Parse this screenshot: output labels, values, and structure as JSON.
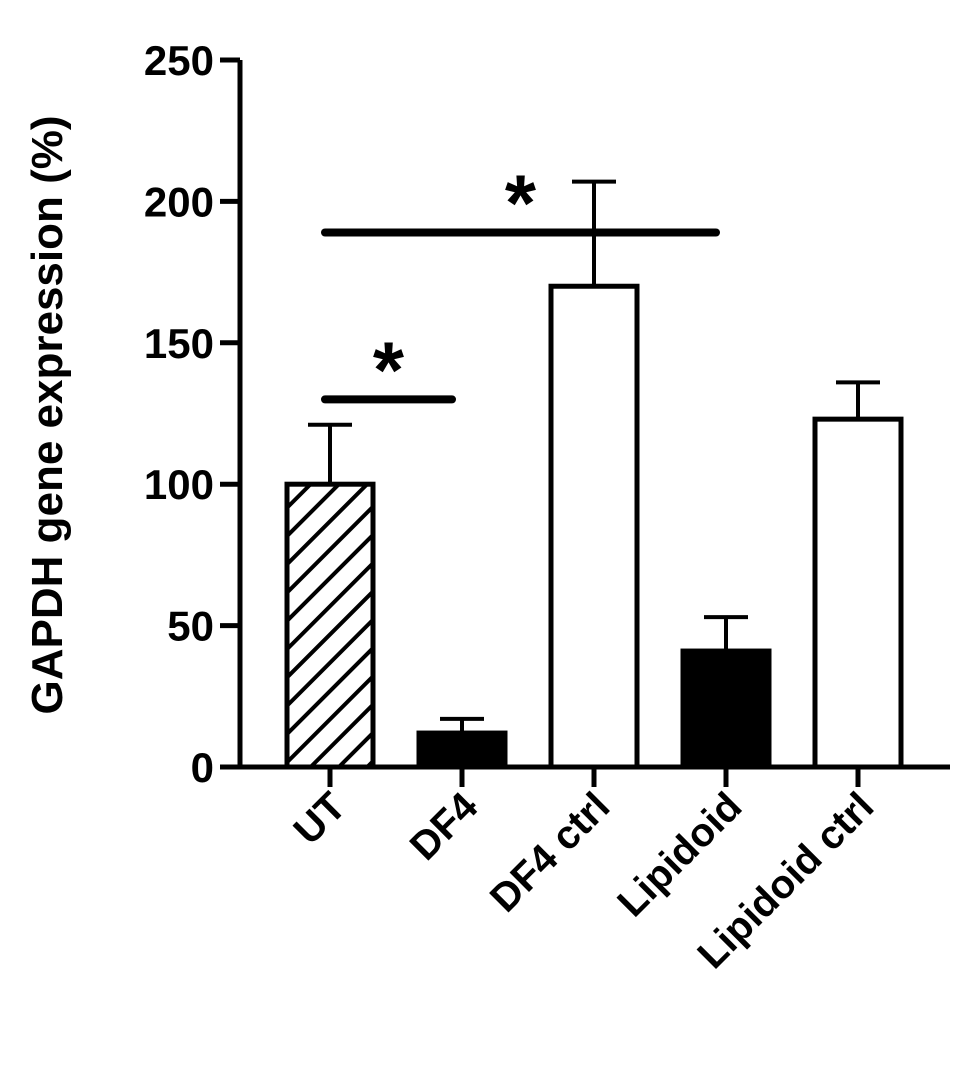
{
  "chart_data": {
    "type": "bar",
    "y_label": "GAPDH gene expression (%)",
    "categories": [
      "UT",
      "DF4",
      "DF4 ctrl",
      "Lipidoid",
      "Lipidoid ctrl"
    ],
    "values": [
      100,
      12,
      170,
      41,
      123
    ],
    "errors": [
      21,
      5,
      37,
      12,
      13
    ],
    "fills": [
      "hatch",
      "#000000",
      "#ffffff",
      "#000000",
      "#ffffff"
    ],
    "ylim": [
      0,
      250
    ],
    "yticks": [
      0,
      50,
      100,
      150,
      200,
      250
    ],
    "annotations": [
      {
        "from": 0,
        "to": 1,
        "y": 130,
        "label": "*"
      },
      {
        "from": 0,
        "to": 3,
        "y": 189,
        "label": "*"
      }
    ]
  }
}
